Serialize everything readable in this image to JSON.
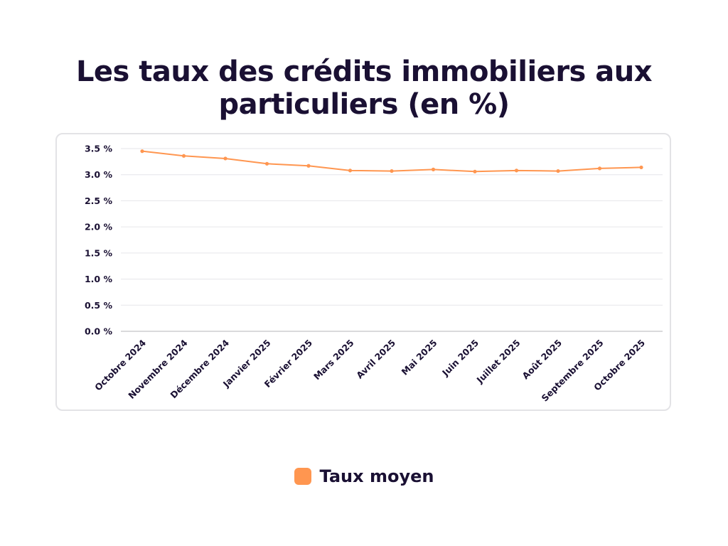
{
  "title": "Les taux des crédits immobiliers aux particuliers (en %)",
  "colors": {
    "series": "#ff9650",
    "text": "#1a1033"
  },
  "chart_data": {
    "type": "line",
    "title": "Les taux des crédits immobiliers aux particuliers (en %)",
    "categories": [
      "Octobre 2024",
      "Novembre 2024",
      "Décembre 2024",
      "Janvier 2025",
      "Février 2025",
      "Mars 2025",
      "Avril 2025",
      "Mai 2025",
      "Juin 2025",
      "Juillet 2025",
      "Août 2025",
      "Septembre 2025",
      "Octobre 2025"
    ],
    "series": [
      {
        "name": "Taux moyen",
        "values": [
          3.45,
          3.36,
          3.31,
          3.21,
          3.17,
          3.08,
          3.07,
          3.1,
          3.06,
          3.08,
          3.07,
          3.12,
          3.14
        ]
      }
    ],
    "yticks": [
      0,
      0.5,
      1.0,
      1.5,
      2.0,
      2.5,
      3.0,
      3.5
    ],
    "ytick_labels": [
      "0.0 %",
      "0.5 %",
      "1.0 %",
      "1.5 %",
      "2.0 %",
      "2.5 %",
      "3.0 %",
      "3.5 %"
    ],
    "ylim": [
      0,
      3.5
    ],
    "grid": true,
    "legend": "bottom-center"
  }
}
